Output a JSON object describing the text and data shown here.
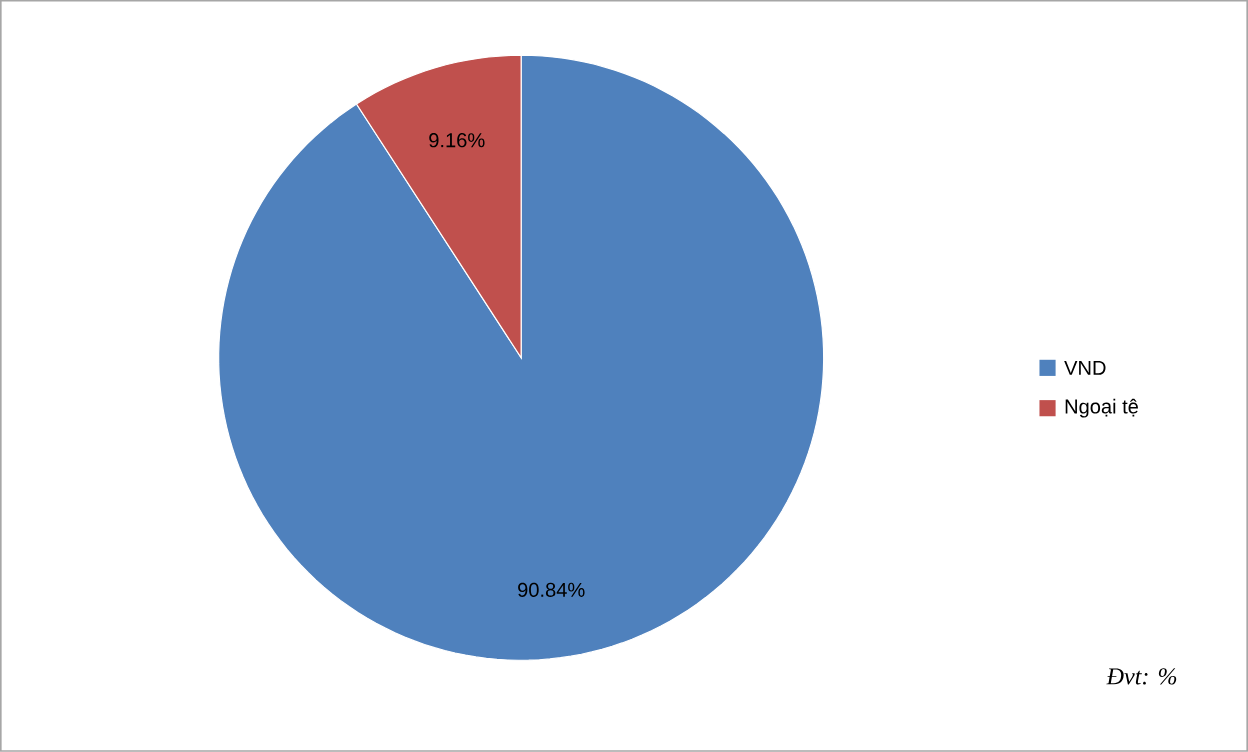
{
  "chart_data": {
    "type": "pie",
    "categories": [
      "VND",
      "Ngoại tệ"
    ],
    "values": [
      90.84,
      9.16
    ],
    "colors": [
      "#4f81bd",
      "#c0504d"
    ],
    "value_labels": [
      "90.84%",
      "9.16%"
    ],
    "legend": "right",
    "annotations": [
      "Đvt: %"
    ]
  }
}
